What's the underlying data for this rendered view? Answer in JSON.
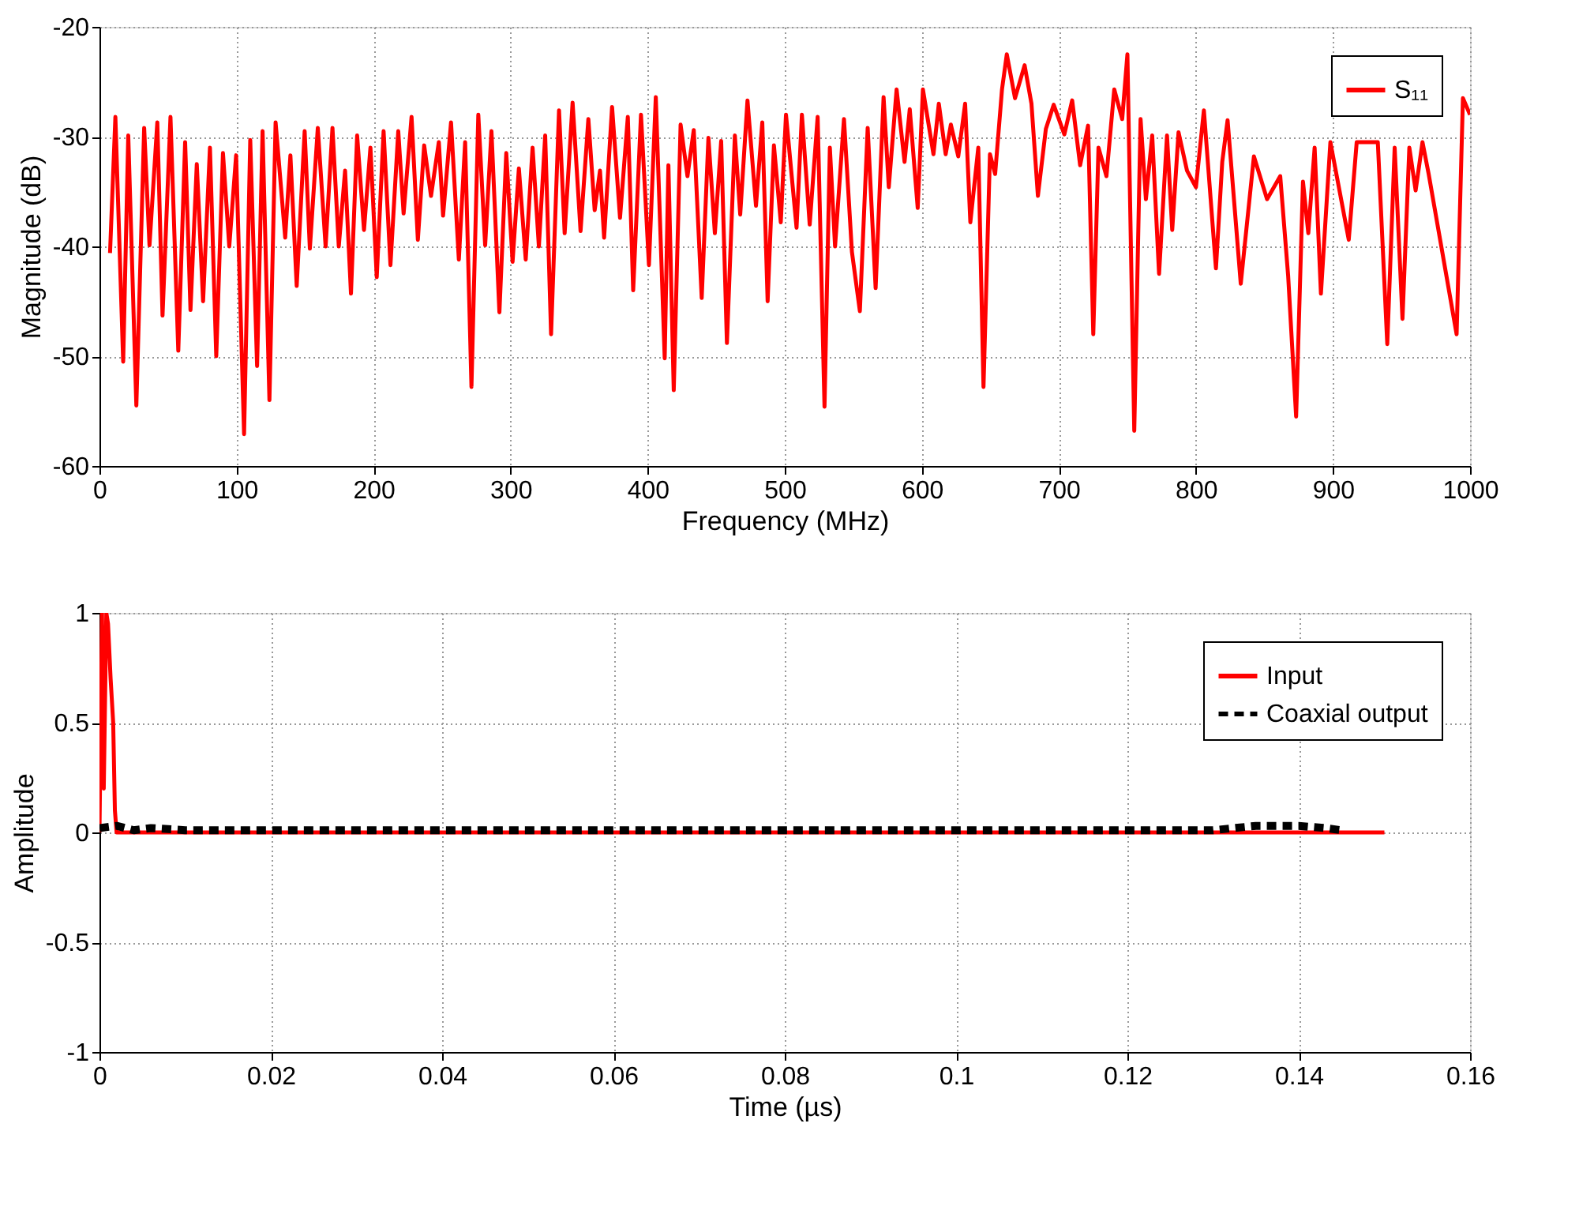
{
  "chart_data": [
    {
      "type": "line",
      "xlabel": "Frequency (MHz)",
      "ylabel": "Magnitude (dB)",
      "xlim": [
        0,
        1000
      ],
      "ylim": [
        -60,
        -20
      ],
      "xticks": [
        0,
        100,
        200,
        300,
        400,
        500,
        600,
        700,
        800,
        900,
        1000
      ],
      "yticks": [
        -60,
        -50,
        -40,
        -30,
        -20
      ],
      "grid": true,
      "legend": "top right",
      "marker": "none",
      "series": [
        {
          "name": "S₁₁",
          "color": "#ff0000",
          "line_style": "solid",
          "x": [
            7.7,
            11.6,
            17.3,
            21,
            26.9,
            32.6,
            36.5,
            42.2,
            46,
            51.8,
            57.5,
            62.5,
            66.4,
            71,
            75.6,
            80.6,
            85.2,
            90.1,
            94.7,
            99.7,
            105.5,
            110,
            115,
            119,
            124,
            128.5,
            135.5,
            139.3,
            143.9,
            149.7,
            153.5,
            159.3,
            165,
            170,
            174.6,
            179.2,
            183.5,
            188,
            193,
            197.7,
            202.3,
            207.3,
            212.3,
            218,
            221.9,
            227.7,
            232.3,
            236.9,
            241.9,
            247.6,
            250.7,
            256.5,
            262.2,
            266.8,
            271.4,
            276.4,
            281.4,
            286,
            291.8,
            296.8,
            301.4,
            306,
            311,
            316,
            320.6,
            325.2,
            329.5,
            335.3,
            339.4,
            345.2,
            351,
            356.7,
            361.3,
            365.2,
            368.2,
            374,
            379.8,
            385.5,
            389.4,
            395.1,
            400.9,
            405.9,
            412.4,
            415.1,
            419,
            424,
            429,
            433.6,
            439.4,
            444.3,
            449,
            453.6,
            457.8,
            463.6,
            467.5,
            472.8,
            479,
            483.6,
            487.5,
            492.1,
            497.1,
            500.9,
            508.6,
            512.5,
            518.2,
            524,
            529,
            532.9,
            536.7,
            543.2,
            549,
            554.8,
            560.5,
            566.3,
            572.1,
            575.9,
            581.6,
            587.4,
            591.2,
            597,
            600.8,
            608.5,
            612.4,
            617.4,
            621.2,
            626.6,
            631.6,
            635.4,
            641.2,
            645,
            649.7,
            653.5,
            658.5,
            662,
            668,
            675,
            680,
            684.7,
            690.5,
            696.2,
            704,
            709.7,
            715.5,
            721.3,
            725.1,
            728.9,
            734.7,
            740.4,
            746.2,
            750,
            755,
            759.6,
            763.5,
            768.1,
            773.1,
            778.9,
            782.7,
            787.3,
            793.5,
            800,
            805.8,
            814.6,
            819.2,
            823.1,
            832.7,
            842.3,
            851.9,
            861.5,
            867.3,
            873.1,
            878.1,
            882,
            886.6,
            891.2,
            898.1,
            911.5,
            917.3,
            925.8,
            932.7,
            939.6,
            945,
            950.7,
            955.7,
            960.3,
            965.3,
            969.8,
            990.2,
            994.8,
            1000
          ],
          "values": [
            -40.6,
            -28.2,
            -50.5,
            -29.9,
            -54.5,
            -29.2,
            -39.9,
            -28.7,
            -46.3,
            -28.2,
            -49.5,
            -30.5,
            -45.8,
            -32.5,
            -45,
            -31,
            -50,
            -31.5,
            -40,
            -31.7,
            -57.1,
            -30.3,
            -50.9,
            -29.5,
            -54,
            -28.7,
            -39.2,
            -31.7,
            -43.6,
            -29.5,
            -40.2,
            -29.2,
            -40,
            -29.2,
            -40,
            -33.1,
            -44.3,
            -29.9,
            -38.5,
            -31,
            -42.8,
            -29.5,
            -41.7,
            -29.5,
            -37,
            -28.2,
            -39.4,
            -30.8,
            -35.4,
            -30.5,
            -37.2,
            -28.7,
            -41.2,
            -30.5,
            -52.8,
            -28,
            -39.9,
            -29.5,
            -46,
            -31.5,
            -41.4,
            -32.9,
            -41.2,
            -31,
            -40,
            -29.9,
            -48,
            -27.6,
            -38.8,
            -26.9,
            -38.6,
            -28.4,
            -36.7,
            -33.1,
            -39.2,
            -27.3,
            -37.4,
            -28.2,
            -44,
            -28,
            -41.7,
            -26.4,
            -50.2,
            -32.6,
            -53.1,
            -28.9,
            -33.6,
            -29.4,
            -44.7,
            -30.1,
            -38.8,
            -30.4,
            -48.8,
            -29.9,
            -37.1,
            -26.7,
            -36.3,
            -28.7,
            -45,
            -30.8,
            -37.8,
            -28,
            -38.3,
            -28,
            -38,
            -28.2,
            -54.6,
            -31,
            -40,
            -28.4,
            -40.5,
            -45.9,
            -29.2,
            -43.8,
            -26.4,
            -34.6,
            -25.7,
            -32.3,
            -27.5,
            -36.5,
            -25.7,
            -31.6,
            -27,
            -31.6,
            -28.9,
            -31.8,
            -27,
            -37.8,
            -31,
            -52.8,
            -31.6,
            -33.4,
            -25.7,
            -22.5,
            -26.5,
            -23.5,
            -27,
            -35.4,
            -29.3,
            -27.1,
            -29.8,
            -26.7,
            -32.6,
            -29,
            -48,
            -31,
            -33.6,
            -25.7,
            -28.4,
            -22.5,
            -56.8,
            -28.4,
            -35.7,
            -29.9,
            -42.5,
            -29.9,
            -38.5,
            -29.6,
            -33.1,
            -34.6,
            -27.6,
            -42,
            -32.3,
            -28.5,
            -43.4,
            -31.8,
            -35.7,
            -33.6,
            -42.7,
            -55.5,
            -34.1,
            -38.8,
            -31,
            -44.3,
            -30.5,
            -39.4,
            -30.5,
            -30.5,
            -30.5,
            -48.9,
            -31,
            -46.6,
            -31,
            -34.9,
            -30.5,
            -33.4,
            -48,
            -26.5,
            -28
          ]
        }
      ]
    },
    {
      "type": "line",
      "xlabel": "Time (µs)",
      "ylabel": "Amplitude",
      "xlim": [
        0,
        0.16
      ],
      "ylim": [
        -1,
        1
      ],
      "xticks": [
        0,
        0.02,
        0.04,
        0.06,
        0.08,
        0.1,
        0.12,
        0.14,
        0.16
      ],
      "yticks": [
        -1,
        -0.5,
        0,
        0.5,
        1
      ],
      "grid": true,
      "legend": "top right",
      "marker": "none",
      "series": [
        {
          "name": "Input",
          "color": "#ff0000",
          "line_style": "solid",
          "x": [
            0,
            0.0003,
            0.0005,
            0.0008,
            0.001,
            0.0013,
            0.0016,
            0.0018,
            0.002,
            0.0025,
            0.15
          ],
          "values": [
            0,
            1,
            0.2,
            1,
            0.95,
            0.7,
            0.5,
            0.1,
            0,
            0,
            0
          ]
        },
        {
          "name": "Coaxial output",
          "color": "#000000",
          "line_style": "dashed",
          "x": [
            0,
            0.002,
            0.004,
            0.006,
            0.01,
            0.13,
            0.135,
            0.14,
            0.143,
            0.145
          ],
          "values": [
            0.02,
            0.03,
            0.01,
            0.02,
            0.01,
            0.01,
            0.03,
            0.03,
            0.02,
            0.01
          ]
        }
      ]
    }
  ]
}
